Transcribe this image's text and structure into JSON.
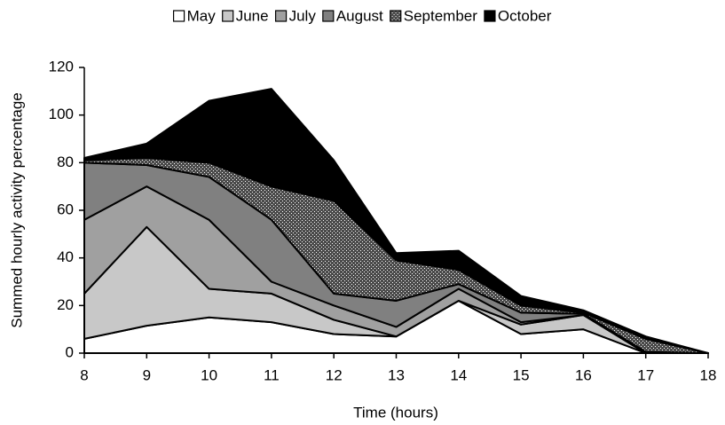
{
  "chart_data": {
    "type": "stacked_area",
    "x": [
      8,
      9,
      10,
      11,
      12,
      13,
      14,
      15,
      16,
      17,
      18
    ],
    "series": [
      {
        "name": "May",
        "color": "#ffffff",
        "values": [
          6,
          11.5,
          15,
          13,
          8,
          7,
          22,
          8,
          10,
          0,
          0
        ]
      },
      {
        "name": "June",
        "color": "#c8c8c8",
        "values": [
          19,
          41.5,
          12,
          12,
          6,
          0,
          0,
          4,
          6,
          0,
          0
        ]
      },
      {
        "name": "July",
        "color": "#a0a0a0",
        "values": [
          31,
          17,
          29,
          5,
          6,
          4,
          5,
          1,
          0,
          0,
          0
        ]
      },
      {
        "name": "August",
        "color": "#808080",
        "values": [
          24,
          9,
          18,
          26,
          5,
          11,
          2,
          4,
          0.5,
          0.5,
          0
        ]
      },
      {
        "name": "September",
        "color": "#4a4a4a",
        "values": [
          1,
          3,
          6,
          14,
          39,
          17,
          6,
          3,
          0.5,
          5.5,
          0
        ]
      },
      {
        "name": "October",
        "color": "#000000",
        "values": [
          1,
          6,
          26,
          41,
          17,
          3,
          8,
          4,
          1,
          1,
          0
        ]
      }
    ],
    "xlabel": "Time (hours)",
    "ylabel": "Summed hourly activity percentage",
    "xlim": [
      8,
      18
    ],
    "xticks": [
      8,
      9,
      10,
      11,
      12,
      13,
      14,
      15,
      16,
      17,
      18
    ],
    "ylim": [
      0,
      120
    ],
    "yticks": [
      0,
      20,
      40,
      60,
      80,
      100,
      120
    ],
    "legend": "top"
  }
}
